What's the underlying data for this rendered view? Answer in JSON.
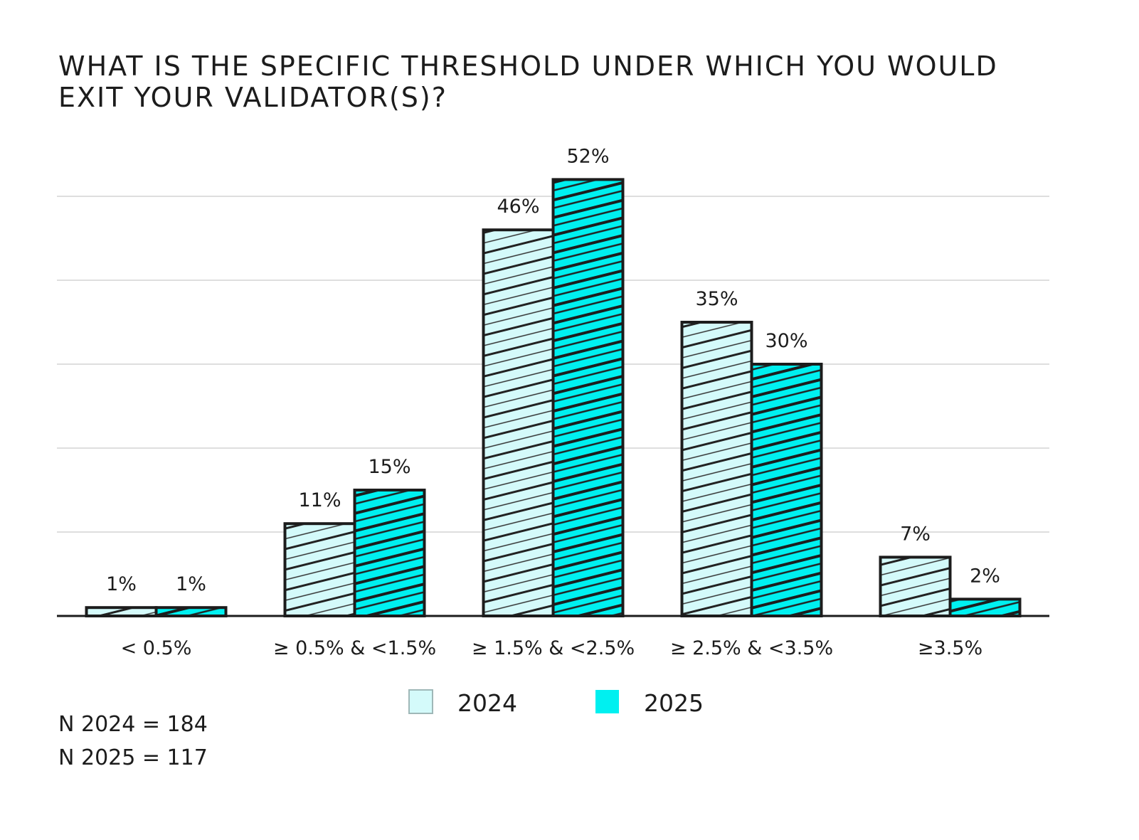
{
  "chart_data": {
    "type": "bar",
    "title_lines": [
      "WHAT IS THE SPECIFIC THRESHOLD UNDER WHICH YOU WOULD",
      "EXIT YOUR VALIDATOR(S)?"
    ],
    "categories": [
      "< 0.5%",
      "≥ 0.5% & <1.5%",
      "≥ 1.5% & <2.5%",
      "≥ 2.5% & <3.5%",
      "≥3.5%"
    ],
    "series": [
      {
        "name": "2024",
        "values": [
          1,
          11,
          46,
          35,
          7
        ],
        "labels": [
          "1%",
          "11%",
          "46%",
          "35%",
          "7%"
        ],
        "color": "#d4fafa"
      },
      {
        "name": "2025",
        "values": [
          1,
          15,
          52,
          30,
          2
        ],
        "labels": [
          "1%",
          "15%",
          "52%",
          "30%",
          "2%"
        ],
        "color": "#00f0f0"
      }
    ],
    "ylim": [
      0,
      55
    ],
    "grid": true,
    "legend": "bottom-center",
    "notes": [
      "N 2024 = 184",
      "N 2025 = 117"
    ]
  }
}
